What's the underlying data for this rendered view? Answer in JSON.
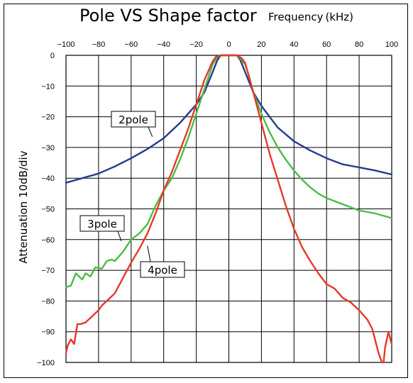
{
  "chart_data": {
    "type": "line",
    "title": "Pole VS Shape factor",
    "xlabel": "Frequency (kHz)",
    "ylabel": "Attenuation  10dB/div",
    "xlim": [
      -100,
      100
    ],
    "ylim": [
      -100,
      0
    ],
    "xticks": [
      "−100",
      "−80",
      "−60",
      "−40",
      "−20",
      "0",
      "20",
      "40",
      "60",
      "80",
      "100"
    ],
    "yticks": [
      "0",
      "−10",
      "−20",
      "−30",
      "−40",
      "−50",
      "−60",
      "−70",
      "−80",
      "−90",
      "−100"
    ],
    "grid": true,
    "series": [
      {
        "name": "2pole",
        "color": "#233C8C",
        "x": [
          -100,
          -90,
          -80,
          -70,
          -60,
          -50,
          -40,
          -30,
          -20,
          -15,
          -10,
          -7,
          -5,
          0,
          5,
          7,
          10,
          15,
          20,
          30,
          40,
          50,
          60,
          70,
          80,
          90,
          100
        ],
        "y": [
          -41.5,
          -40,
          -38.5,
          -36.2,
          -33.5,
          -30.5,
          -27,
          -22,
          -16,
          -12,
          -5.5,
          -1.5,
          0,
          0,
          0,
          -1.5,
          -5.5,
          -12,
          -16.5,
          -23.5,
          -28,
          -31,
          -33.5,
          -35.5,
          -36.5,
          -37.5,
          -38.8
        ]
      },
      {
        "name": "3pole",
        "color": "#4CBB45",
        "x": [
          -100,
          -97,
          -94,
          -90,
          -88,
          -85,
          -82,
          -78,
          -75,
          -72,
          -70,
          -65,
          -60,
          -55,
          -50,
          -45,
          -40,
          -35,
          -30,
          -25,
          -20,
          -15,
          -10,
          -7,
          -5,
          0,
          5,
          7,
          10,
          12,
          15,
          20,
          25,
          30,
          35,
          40,
          45,
          50,
          55,
          60,
          70,
          80,
          90,
          100
        ],
        "y": [
          -75.5,
          -75,
          -71,
          -73,
          -71,
          -72,
          -69,
          -69.5,
          -67,
          -66.5,
          -67,
          -64,
          -60,
          -58,
          -55,
          -49,
          -44,
          -40,
          -34,
          -27,
          -19,
          -11,
          -3,
          -0.5,
          0,
          0,
          0,
          -1,
          -3,
          -6,
          -12,
          -19,
          -25,
          -30,
          -34,
          -37.5,
          -40.5,
          -43,
          -45,
          -46.5,
          -48.5,
          -50.5,
          -51.5,
          -53
        ]
      },
      {
        "name": "4pole",
        "color": "#E63828",
        "x": [
          -100,
          -99,
          -97,
          -95,
          -93,
          -91,
          -88,
          -85,
          -80,
          -78,
          -75,
          -70,
          -65,
          -60,
          -55,
          -50,
          -45,
          -40,
          -35,
          -30,
          -25,
          -20,
          -15,
          -10,
          -8,
          -5,
          0,
          5,
          8,
          10,
          15,
          20,
          25,
          30,
          35,
          40,
          45,
          50,
          55,
          60,
          65,
          70,
          75,
          80,
          85,
          88,
          90,
          92,
          94,
          95,
          96,
          98,
          99,
          100
        ],
        "y": [
          -97,
          -94.5,
          -92.5,
          -94,
          -87.5,
          -87.5,
          -87,
          -85.5,
          -83,
          -81.5,
          -80,
          -77.5,
          -72.5,
          -67.5,
          -63,
          -58,
          -51.5,
          -44,
          -38,
          -31,
          -24,
          -16,
          -8,
          -2,
          -0.5,
          0,
          0,
          0,
          -1,
          -2.5,
          -12,
          -22,
          -32,
          -40.5,
          -49,
          -56.5,
          -62.5,
          -67,
          -71,
          -74.5,
          -76,
          -79,
          -80.5,
          -83,
          -86,
          -89,
          -93,
          -97,
          -100,
          -100,
          -95,
          -90,
          -92,
          -94
        ]
      }
    ],
    "annotations": [
      {
        "text": "2pole",
        "series": "2pole"
      },
      {
        "text": "3pole",
        "series": "3pole"
      },
      {
        "text": "4pole",
        "series": "4pole"
      }
    ]
  }
}
